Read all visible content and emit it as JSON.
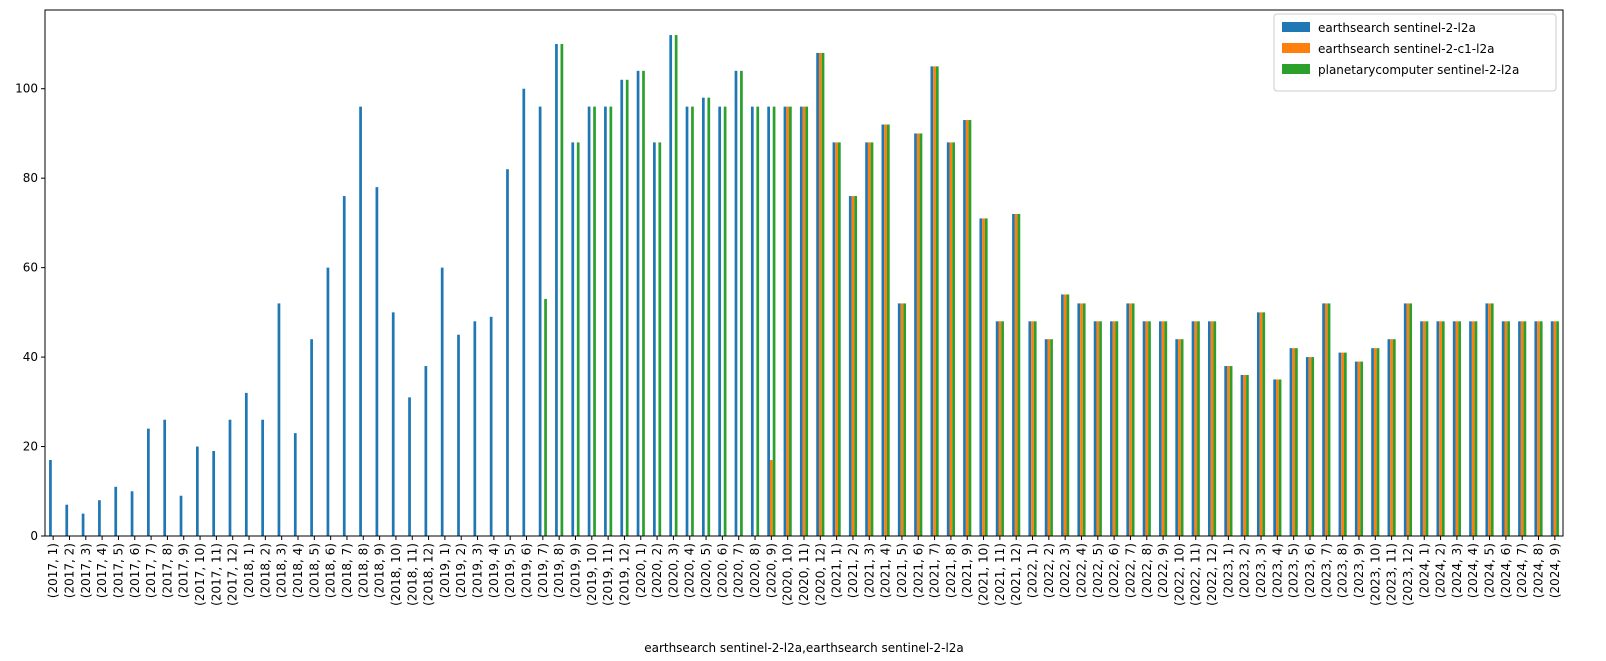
{
  "chart_data": {
    "type": "bar",
    "xlabel": "earthsearch sentinel-2-l2a,earthsearch sentinel-2-l2a",
    "categories": [
      "(2017, 1)",
      "(2017, 2)",
      "(2017, 3)",
      "(2017, 4)",
      "(2017, 5)",
      "(2017, 6)",
      "(2017, 7)",
      "(2017, 8)",
      "(2017, 9)",
      "(2017, 10)",
      "(2017, 11)",
      "(2017, 12)",
      "(2018, 1)",
      "(2018, 2)",
      "(2018, 3)",
      "(2018, 4)",
      "(2018, 5)",
      "(2018, 6)",
      "(2018, 7)",
      "(2018, 8)",
      "(2018, 9)",
      "(2018, 10)",
      "(2018, 11)",
      "(2018, 12)",
      "(2019, 1)",
      "(2019, 2)",
      "(2019, 3)",
      "(2019, 4)",
      "(2019, 5)",
      "(2019, 6)",
      "(2019, 7)",
      "(2019, 8)",
      "(2019, 9)",
      "(2019, 10)",
      "(2019, 11)",
      "(2019, 12)",
      "(2020, 1)",
      "(2020, 2)",
      "(2020, 3)",
      "(2020, 4)",
      "(2020, 5)",
      "(2020, 6)",
      "(2020, 7)",
      "(2020, 8)",
      "(2020, 9)",
      "(2020, 10)",
      "(2020, 11)",
      "(2020, 12)",
      "(2021, 1)",
      "(2021, 2)",
      "(2021, 3)",
      "(2021, 4)",
      "(2021, 5)",
      "(2021, 6)",
      "(2021, 7)",
      "(2021, 8)",
      "(2021, 9)",
      "(2021, 10)",
      "(2021, 11)",
      "(2021, 12)",
      "(2022, 1)",
      "(2022, 2)",
      "(2022, 3)",
      "(2022, 4)",
      "(2022, 5)",
      "(2022, 6)",
      "(2022, 7)",
      "(2022, 8)",
      "(2022, 9)",
      "(2022, 10)",
      "(2022, 11)",
      "(2022, 12)",
      "(2023, 1)",
      "(2023, 2)",
      "(2023, 3)",
      "(2023, 4)",
      "(2023, 5)",
      "(2023, 6)",
      "(2023, 7)",
      "(2023, 8)",
      "(2023, 9)",
      "(2023, 10)",
      "(2023, 11)",
      "(2023, 12)",
      "(2024, 1)",
      "(2024, 2)",
      "(2024, 3)",
      "(2024, 4)",
      "(2024, 5)",
      "(2024, 6)",
      "(2024, 7)",
      "(2024, 8)",
      "(2024, 9)"
    ],
    "series": [
      {
        "name": "earthsearch sentinel-2-l2a",
        "color": "#1f77b4",
        "values": [
          17,
          7,
          5,
          8,
          11,
          10,
          24,
          26,
          9,
          20,
          19,
          26,
          32,
          26,
          52,
          23,
          44,
          60,
          76,
          96,
          78,
          50,
          31,
          38,
          60,
          45,
          48,
          49,
          82,
          100,
          96,
          110,
          88,
          96,
          96,
          102,
          104,
          88,
          112,
          96,
          98,
          96,
          104,
          96,
          96,
          96,
          96,
          108,
          88,
          76,
          88,
          92,
          52,
          90,
          105,
          88,
          93,
          71,
          48,
          72,
          48,
          44,
          54,
          52,
          48,
          48,
          52,
          48,
          48,
          44,
          48,
          48,
          38,
          36,
          50,
          35,
          42,
          40,
          52,
          41,
          39,
          42,
          44,
          52,
          48,
          48,
          48,
          48,
          52,
          48,
          48,
          48,
          48
        ]
      },
      {
        "name": "earthsearch sentinel-2-c1-l2a",
        "color": "#ff7f0e",
        "values": [
          null,
          null,
          null,
          null,
          null,
          null,
          null,
          null,
          null,
          null,
          null,
          null,
          null,
          null,
          null,
          null,
          null,
          null,
          null,
          null,
          null,
          null,
          null,
          null,
          null,
          null,
          null,
          null,
          null,
          null,
          null,
          null,
          null,
          null,
          null,
          null,
          null,
          null,
          null,
          null,
          null,
          null,
          null,
          null,
          17,
          96,
          96,
          108,
          88,
          76,
          88,
          92,
          52,
          90,
          105,
          88,
          93,
          71,
          48,
          72,
          48,
          44,
          54,
          52,
          48,
          48,
          52,
          48,
          48,
          44,
          48,
          48,
          38,
          36,
          50,
          35,
          42,
          40,
          52,
          41,
          39,
          42,
          44,
          52,
          48,
          48,
          48,
          48,
          52,
          48,
          48,
          48,
          48
        ]
      },
      {
        "name": "planetarycomputer sentinel-2-l2a",
        "color": "#2ca02c",
        "values": [
          null,
          null,
          null,
          null,
          null,
          null,
          null,
          null,
          null,
          null,
          null,
          null,
          null,
          null,
          null,
          null,
          null,
          null,
          null,
          null,
          null,
          null,
          null,
          null,
          null,
          null,
          null,
          null,
          null,
          null,
          53,
          110,
          88,
          96,
          96,
          102,
          104,
          88,
          112,
          96,
          98,
          96,
          104,
          96,
          96,
          96,
          96,
          108,
          88,
          76,
          88,
          92,
          52,
          90,
          105,
          88,
          93,
          71,
          48,
          72,
          48,
          44,
          54,
          52,
          48,
          48,
          52,
          48,
          48,
          44,
          48,
          48,
          38,
          36,
          50,
          35,
          42,
          40,
          52,
          41,
          39,
          42,
          44,
          52,
          48,
          48,
          48,
          48,
          52,
          48,
          48,
          48,
          48
        ]
      }
    ],
    "ylim": [
      0,
      117.6
    ],
    "yticks": [
      0,
      20,
      40,
      60,
      80,
      100
    ],
    "legend": "upper right"
  }
}
